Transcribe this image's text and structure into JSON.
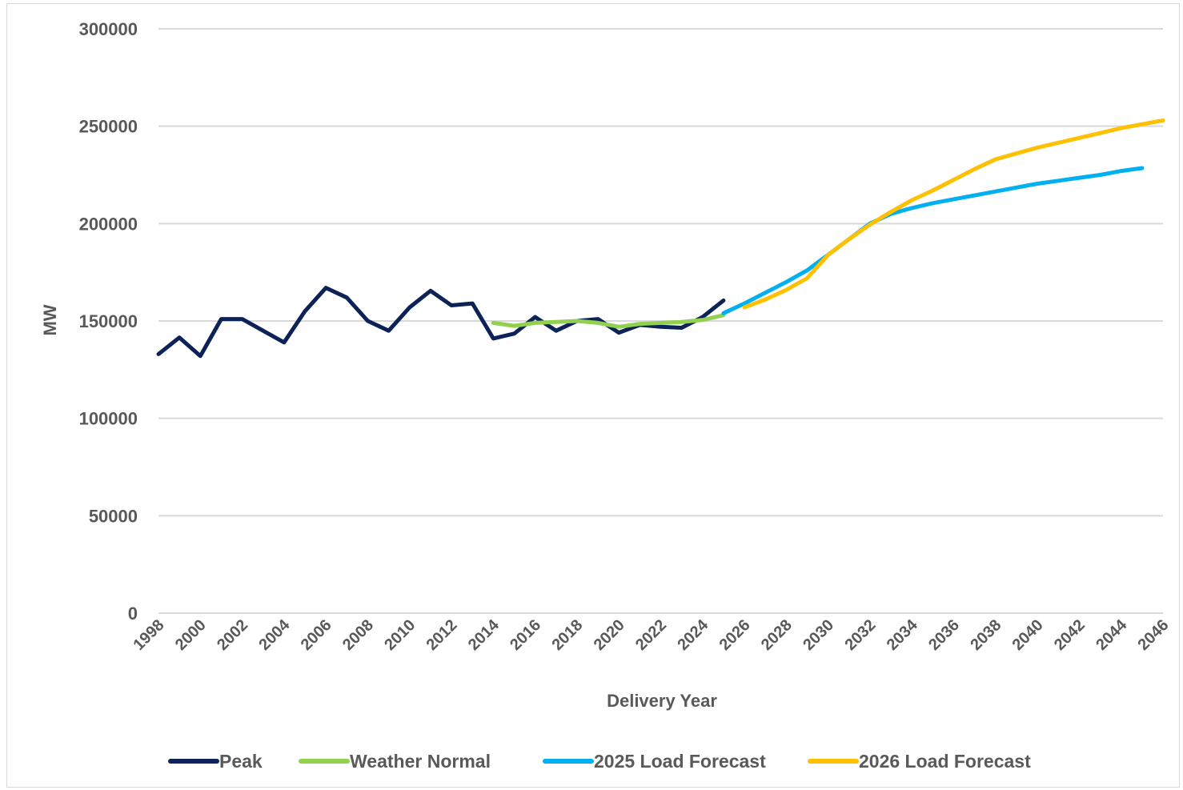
{
  "chart_data": {
    "type": "line",
    "title": "",
    "xlabel": "Delivery Year",
    "ylabel": "MW",
    "ylim": [
      0,
      300000
    ],
    "yticks": [
      0,
      50000,
      100000,
      150000,
      200000,
      250000,
      300000
    ],
    "xlim": [
      1998,
      2046
    ],
    "xticks": [
      1998,
      2000,
      2002,
      2004,
      2006,
      2008,
      2010,
      2012,
      2014,
      2016,
      2018,
      2020,
      2022,
      2024,
      2026,
      2028,
      2030,
      2032,
      2034,
      2036,
      2038,
      2040,
      2042,
      2044,
      2046
    ],
    "grid": "horizontal",
    "legend_position": "bottom",
    "series": [
      {
        "name": "Peak",
        "color": "#0d2257",
        "x": [
          1998,
          1999,
          2000,
          2001,
          2002,
          2003,
          2004,
          2005,
          2006,
          2007,
          2008,
          2009,
          2010,
          2011,
          2012,
          2013,
          2014,
          2015,
          2016,
          2017,
          2018,
          2019,
          2020,
          2021,
          2022,
          2023,
          2024,
          2025
        ],
        "values": [
          133000,
          141500,
          132000,
          151000,
          151000,
          145000,
          139000,
          155000,
          167000,
          162000,
          150000,
          145000,
          157000,
          165500,
          158000,
          159000,
          141000,
          143500,
          152000,
          145000,
          150000,
          151000,
          144000,
          148000,
          147000,
          146500,
          152000,
          160500
        ]
      },
      {
        "name": "Weather Normal",
        "color": "#92d050",
        "x": [
          2014,
          2015,
          2016,
          2017,
          2018,
          2019,
          2020,
          2021,
          2022,
          2023,
          2024,
          2025
        ],
        "values": [
          149000,
          147500,
          149000,
          149500,
          150000,
          149000,
          147000,
          148500,
          149000,
          149500,
          150500,
          153000
        ]
      },
      {
        "name": "2025 Load Forecast",
        "color": "#00b0f0",
        "x": [
          2025,
          2026,
          2027,
          2028,
          2029,
          2030,
          2031,
          2032,
          2033,
          2034,
          2035,
          2036,
          2037,
          2038,
          2039,
          2040,
          2041,
          2042,
          2043,
          2044,
          2045
        ],
        "values": [
          154000,
          159000,
          164500,
          170000,
          176000,
          184000,
          192000,
          200000,
          205000,
          208000,
          210500,
          212500,
          214500,
          216500,
          218500,
          220500,
          222000,
          223500,
          225000,
          227000,
          228500
        ]
      },
      {
        "name": "2026 Load Forecast",
        "color": "#ffc000",
        "x": [
          2026,
          2027,
          2028,
          2029,
          2030,
          2031,
          2032,
          2033,
          2034,
          2035,
          2036,
          2037,
          2038,
          2039,
          2040,
          2041,
          2042,
          2043,
          2044,
          2045,
          2046
        ],
        "values": [
          157000,
          161000,
          166000,
          172000,
          184000,
          192000,
          199500,
          206000,
          212000,
          217000,
          222500,
          228000,
          233000,
          236000,
          239000,
          241500,
          244000,
          246500,
          249000,
          251000,
          253000
        ]
      }
    ]
  }
}
